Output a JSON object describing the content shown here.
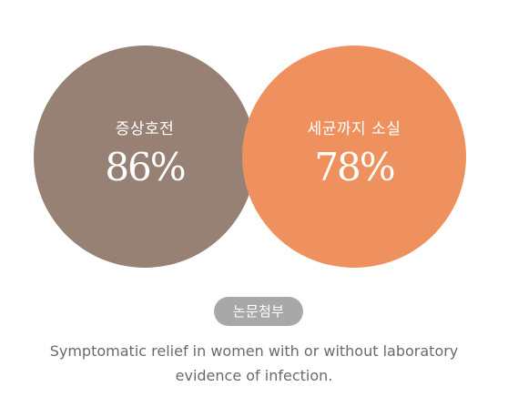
{
  "circles": [
    {
      "label": "증상호전",
      "value": "86%",
      "color": "#978175"
    },
    {
      "label": "세균까지 소실",
      "value": "78%",
      "color": "#ee915f"
    }
  ],
  "badge": {
    "label": "논문첨부",
    "color": "#a8a8a8"
  },
  "caption": {
    "line1": "Symptomatic relief in women with or without laboratory",
    "line2": "evidence of infection."
  }
}
